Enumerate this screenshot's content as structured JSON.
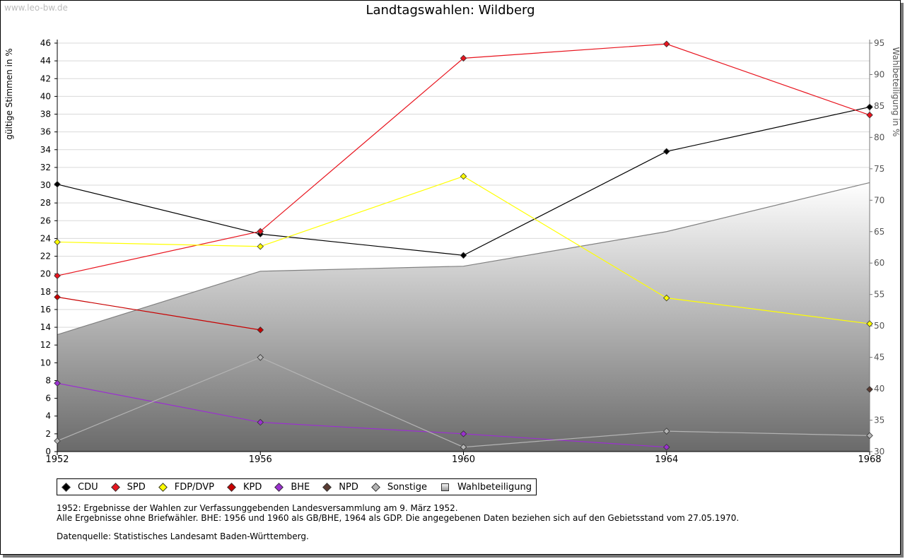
{
  "watermark": "www.leo-bw.de",
  "chart_data": {
    "type": "line",
    "title": "Landtagswahlen: Wildberg",
    "ylabel": "gültige Stimmen in %",
    "y2label": "Wahlbeteiligung in %",
    "x": [
      "1952",
      "1956",
      "1960",
      "1964",
      "1968"
    ],
    "ylim": [
      0,
      46
    ],
    "y2lim": [
      30,
      95
    ],
    "yticks": [
      "0",
      "2",
      "4",
      "6",
      "8",
      "10",
      "12",
      "14",
      "16",
      "18",
      "20",
      "22",
      "24",
      "26",
      "28",
      "30",
      "32",
      "34",
      "36",
      "38",
      "40",
      "42",
      "44",
      "46"
    ],
    "y2ticks": [
      "30",
      "35",
      "40",
      "45",
      "50",
      "55",
      "60",
      "65",
      "70",
      "75",
      "80",
      "85",
      "90",
      "95"
    ],
    "grid": true,
    "legend_position": "bottom",
    "series": [
      {
        "name": "CDU",
        "color": "#000000",
        "values": [
          30.1,
          24.5,
          22.1,
          33.8,
          38.8
        ]
      },
      {
        "name": "SPD",
        "color": "#e8141e",
        "values": [
          19.8,
          24.8,
          44.3,
          45.9,
          37.9
        ]
      },
      {
        "name": "FDP/DVP",
        "color": "#ffff00",
        "values": [
          23.6,
          23.1,
          31.0,
          17.3,
          14.4
        ]
      },
      {
        "name": "KPD",
        "color": "#c80000",
        "values": [
          17.4,
          13.7,
          null,
          null,
          null
        ]
      },
      {
        "name": "BHE",
        "color": "#9b30d0",
        "values": [
          7.7,
          3.3,
          2.0,
          0.5,
          null
        ]
      },
      {
        "name": "NPD",
        "color": "#5a3c32",
        "values": [
          null,
          null,
          null,
          null,
          7.0
        ]
      },
      {
        "name": "Sonstige",
        "color": "#b4b4b4",
        "values": [
          1.2,
          10.6,
          0.5,
          2.3,
          1.8
        ]
      }
    ],
    "area": {
      "name": "Wahlbeteiligung",
      "axis": "right",
      "values": [
        48.6,
        58.7,
        59.5,
        65.0,
        72.8
      ]
    }
  },
  "notes": {
    "line1": "1952: Ergebnisse der Wahlen zur Verfassunggebenden Landesversammlung am 9. März 1952.",
    "line2": "Alle Ergebnisse ohne Briefwähler. BHE: 1956 und 1960 als GB/BHE, 1964 als GDP. Die angegebenen Daten beziehen sich auf den Gebietsstand vom 27.05.1970.",
    "source": "Datenquelle: Statistisches Landesamt Baden-Württemberg."
  }
}
